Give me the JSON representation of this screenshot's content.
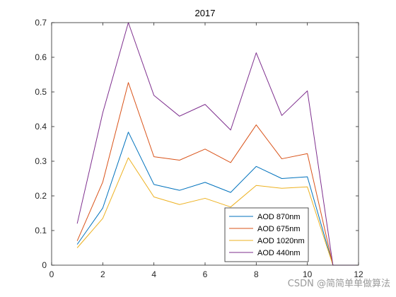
{
  "chart_data": {
    "type": "line",
    "title": "2017",
    "xlabel": "",
    "ylabel": "",
    "xlim": [
      0,
      12
    ],
    "ylim": [
      0,
      0.7
    ],
    "x_ticks": [
      0,
      2,
      4,
      6,
      8,
      10,
      12
    ],
    "x_tick_labels": [
      "0",
      "2",
      "4",
      "6",
      "8",
      "10",
      "12"
    ],
    "y_ticks": [
      0,
      0.1,
      0.2,
      0.3,
      0.4,
      0.5,
      0.6,
      0.7
    ],
    "y_tick_labels": [
      "0",
      "0.1",
      "0.2",
      "0.3",
      "0.4",
      "0.5",
      "0.6",
      "0.7"
    ],
    "grid": false,
    "legend_position": "bottom-right",
    "x": [
      1,
      2,
      3,
      4,
      5,
      6,
      7,
      8,
      9,
      10,
      11,
      12
    ],
    "series": [
      {
        "name": "AOD 870nm",
        "color": "#0072BD",
        "values": [
          0.06,
          0.165,
          0.384,
          0.233,
          0.216,
          0.239,
          0.21,
          0.285,
          0.25,
          0.255,
          0,
          0
        ]
      },
      {
        "name": "AOD 675nm",
        "color": "#D95319",
        "values": [
          0.07,
          0.24,
          0.527,
          0.313,
          0.303,
          0.335,
          0.296,
          0.405,
          0.307,
          0.322,
          0,
          0
        ]
      },
      {
        "name": "AOD 1020nm",
        "color": "#EDB120",
        "values": [
          0.05,
          0.135,
          0.31,
          0.197,
          0.175,
          0.193,
          0.168,
          0.23,
          0.222,
          0.226,
          0,
          0
        ]
      },
      {
        "name": "AOD 440nm",
        "color": "#7E2F8E",
        "values": [
          0.12,
          0.44,
          0.7,
          0.49,
          0.43,
          0.464,
          0.39,
          0.613,
          0.432,
          0.503,
          0,
          0
        ]
      }
    ]
  },
  "watermark": "CSDN @简简单单做算法"
}
